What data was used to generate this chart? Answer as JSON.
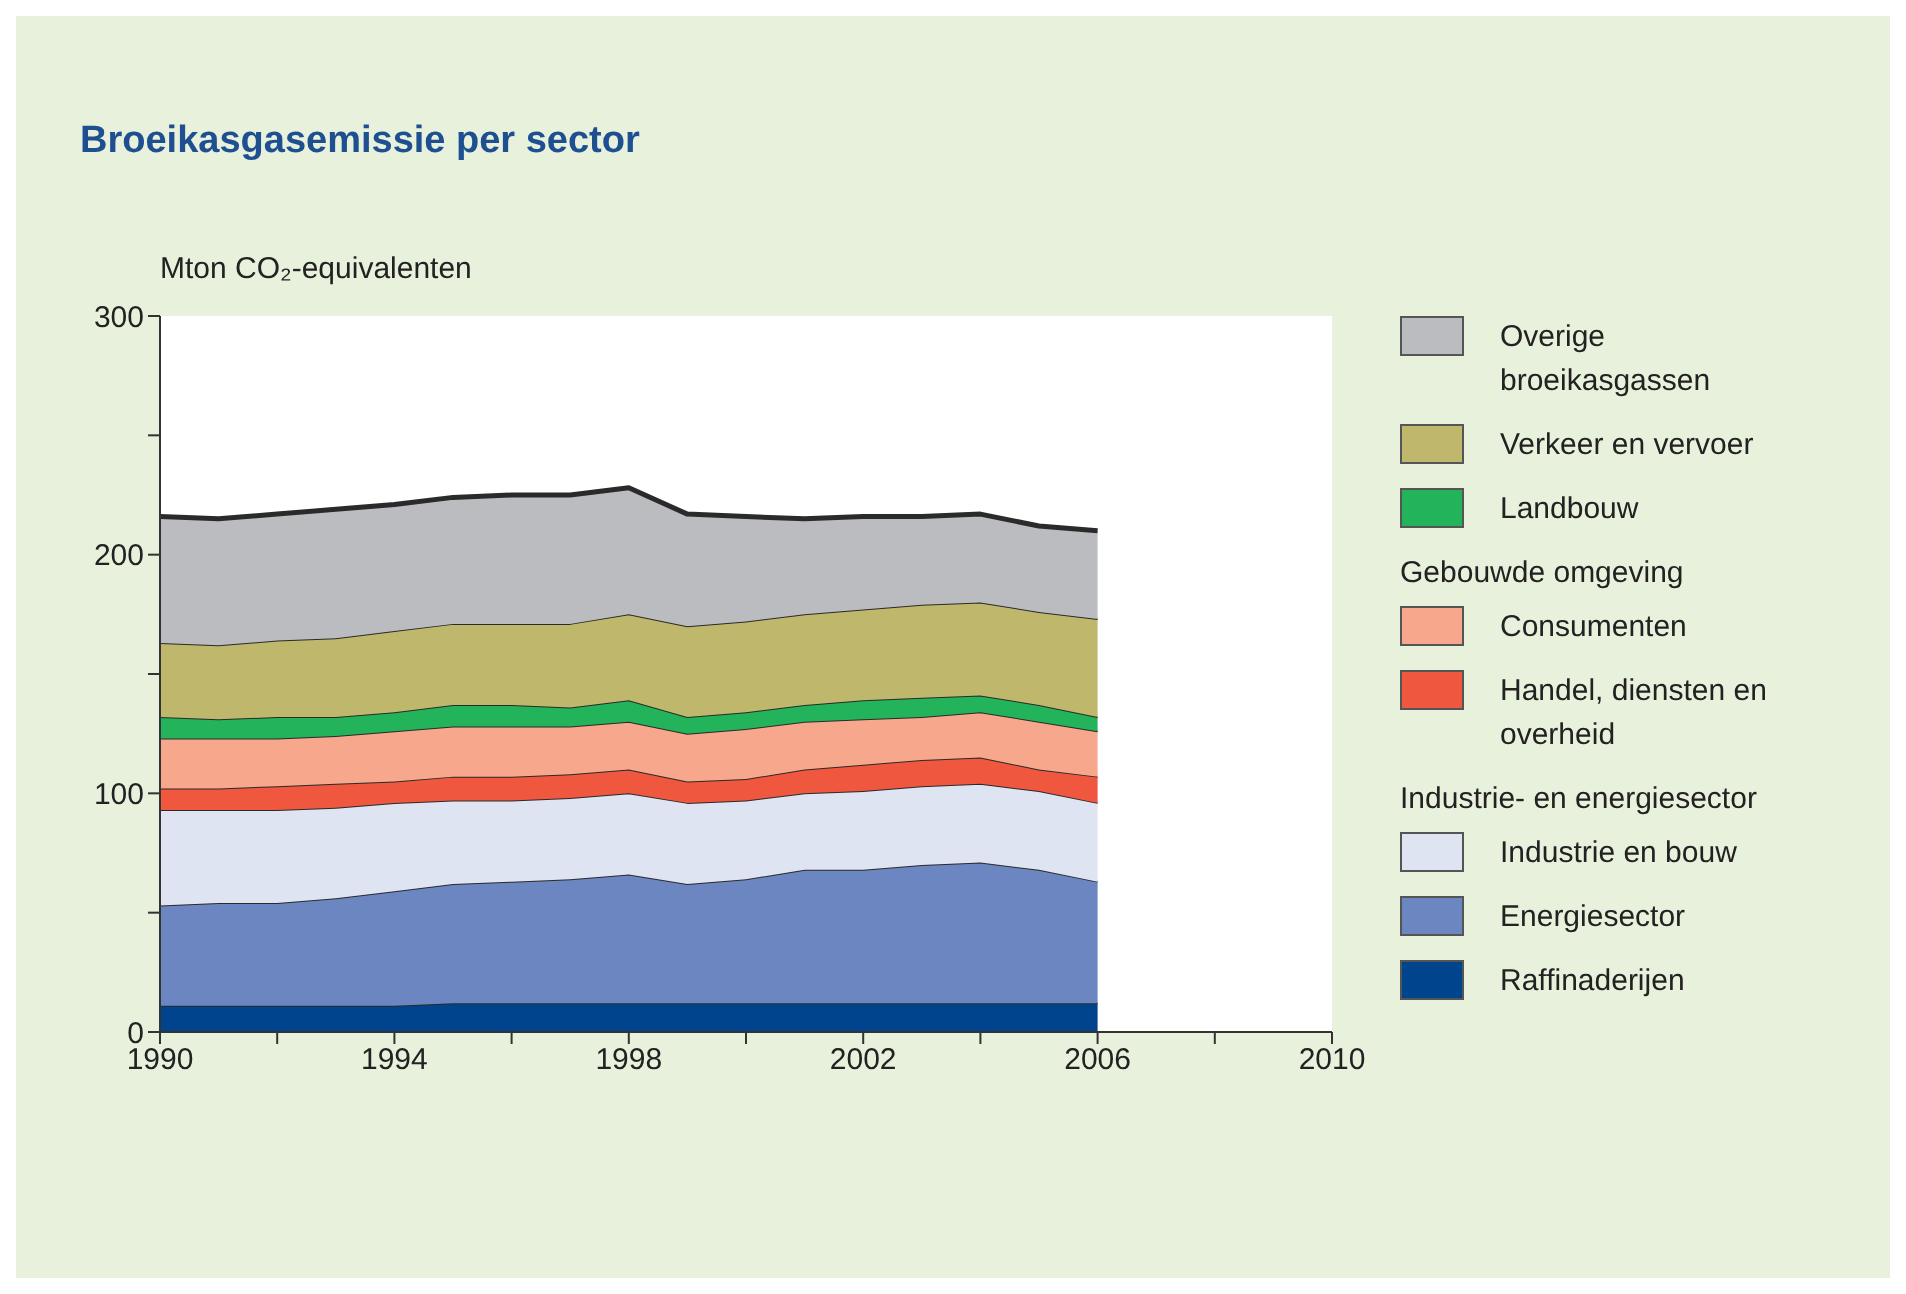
{
  "chart_data": {
    "type": "area",
    "stacked": true,
    "title": "Broeikasgasemissie per sector",
    "ylabel": "Mton CO₂-equivalenten",
    "x": [
      1990,
      1991,
      1992,
      1993,
      1994,
      1995,
      1996,
      1997,
      1998,
      1999,
      2000,
      2001,
      2002,
      2003,
      2004,
      2005,
      2006
    ],
    "xlim": [
      1990,
      2010
    ],
    "xticks": [
      1990,
      {
        "value": 1992,
        "label": null
      },
      1994,
      {
        "value": 1996,
        "label": null
      },
      1998,
      {
        "value": 2000,
        "label": null
      },
      2002,
      {
        "value": 2004,
        "label": null
      },
      2006,
      {
        "value": 2008,
        "label": null
      },
      2010
    ],
    "ylim": [
      0,
      300
    ],
    "yticks": [
      0,
      {
        "value": 50,
        "label": null
      },
      100,
      {
        "value": 150,
        "label": null
      },
      200,
      {
        "value": 250,
        "label": null
      },
      300
    ],
    "grid": false,
    "legend": "right",
    "annotations": [
      "Gebouwde omgeving",
      "Industrie- en energiesector"
    ],
    "series": [
      {
        "name": "Raffinaderijen",
        "color": "#00448e",
        "values": [
          11,
          11,
          11,
          11,
          11,
          12,
          12,
          12,
          12,
          12,
          12,
          12,
          12,
          12,
          12,
          12,
          12
        ]
      },
      {
        "name": "Energiesector",
        "color": "#6b86c1",
        "values": [
          42,
          43,
          43,
          45,
          48,
          50,
          51,
          52,
          54,
          50,
          52,
          56,
          56,
          58,
          59,
          56,
          51
        ]
      },
      {
        "name": "Industrie en bouw",
        "color": "#dfe4f2",
        "values": [
          40,
          39,
          39,
          38,
          37,
          35,
          34,
          34,
          34,
          34,
          33,
          32,
          33,
          33,
          33,
          33,
          33
        ]
      },
      {
        "name": "Handel, diensten en overheid",
        "color": "#ef573f",
        "values": [
          9,
          9,
          10,
          10,
          9,
          10,
          10,
          10,
          10,
          9,
          9,
          10,
          11,
          11,
          11,
          9,
          11
        ]
      },
      {
        "name": "Consumenten",
        "color": "#f7a88c",
        "values": [
          21,
          21,
          20,
          20,
          21,
          21,
          21,
          20,
          20,
          20,
          21,
          20,
          19,
          18,
          19,
          20,
          19
        ]
      },
      {
        "name": "Landbouw",
        "color": "#23b35a",
        "values": [
          9,
          8,
          9,
          8,
          8,
          9,
          9,
          8,
          9,
          7,
          7,
          7,
          8,
          8,
          7,
          7,
          6
        ]
      },
      {
        "name": "Verkeer en vervoer",
        "color": "#bfb86c",
        "values": [
          31,
          31,
          32,
          33,
          34,
          34,
          34,
          35,
          36,
          38,
          38,
          38,
          38,
          39,
          39,
          39,
          41
        ]
      },
      {
        "name": "Overige broeikasgassen",
        "color": "#bbbcc0",
        "values": [
          53,
          53,
          53,
          54,
          53,
          53,
          54,
          54,
          53,
          47,
          44,
          40,
          39,
          37,
          37,
          36,
          37
        ]
      }
    ]
  }
}
